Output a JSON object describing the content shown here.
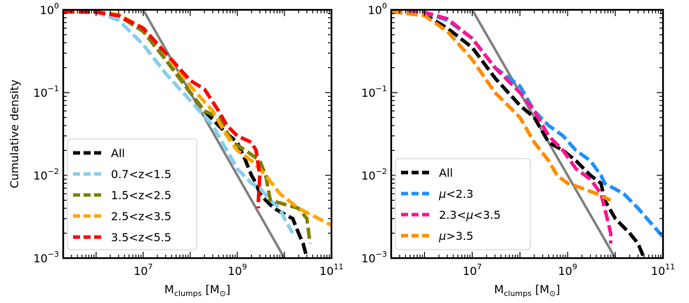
{
  "chart_data": [
    {
      "type": "line",
      "xscale": "log",
      "yscale": "log",
      "xlim": [
        200000,
        100000000000
      ],
      "ylim": [
        0.001,
        1
      ],
      "ylabel": "Cumulative density",
      "xlabel": {
        "main": "M",
        "sub": "clumps",
        "unit_open": " [M",
        "unit_sub": "⊙",
        "unit_close": "]"
      },
      "x_ticks": [
        {
          "base": "10",
          "exp": "7",
          "value": 10000000
        },
        {
          "base": "10",
          "exp": "9",
          "value": 1000000000
        },
        {
          "base": "10",
          "exp": "11",
          "value": 100000000000
        }
      ],
      "y_ticks": [
        {
          "base": "10",
          "exp": "0",
          "value": 1
        },
        {
          "base": "10",
          "exp": "−1",
          "value": 0.1
        },
        {
          "base": "10",
          "exp": "−2",
          "value": 0.01
        },
        {
          "base": "10",
          "exp": "−3",
          "value": 0.001
        }
      ],
      "legend_position": "lower-left",
      "reference_line": {
        "name": "power-law",
        "color": "#808080",
        "points": [
          [
            10000000,
            1
          ],
          [
            10000000000,
            0.001
          ]
        ]
      },
      "series": [
        {
          "name": "All",
          "color": "#000000",
          "points": [
            [
              200000,
              0.95
            ],
            [
              1000000,
              0.94
            ],
            [
              3000000,
              0.85
            ],
            [
              10000000,
              0.55
            ],
            [
              30000000,
              0.25
            ],
            [
              100000000,
              0.1
            ],
            [
              200000000,
              0.06
            ],
            [
              400000000,
              0.04
            ],
            [
              600000000,
              0.032
            ],
            [
              1000000000,
              0.025
            ],
            [
              1500000000,
              0.015
            ],
            [
              2000000000,
              0.01
            ],
            [
              2500000000,
              0.008
            ],
            [
              3000000000,
              0.006
            ],
            [
              4000000000,
              0.005
            ],
            [
              6000000000,
              0.004
            ],
            [
              15000000000,
              0.003
            ],
            [
              20000000000,
              0.002
            ],
            [
              25000000000,
              0.0015
            ],
            [
              30000000000,
              0.001
            ]
          ]
        },
        {
          "name": "0.7<z<1.5",
          "color": "#87CEEB",
          "points": [
            [
              200000,
              0.95
            ],
            [
              1000000,
              0.93
            ],
            [
              3000000,
              0.75
            ],
            [
              10000000,
              0.38
            ],
            [
              30000000,
              0.17
            ],
            [
              100000000,
              0.08
            ],
            [
              300000000,
              0.04
            ],
            [
              600000000,
              0.02
            ],
            [
              1000000000,
              0.012
            ],
            [
              2000000000,
              0.008
            ],
            [
              3000000000,
              0.007
            ],
            [
              5000000000,
              0.005
            ],
            [
              8000000000,
              0.004
            ],
            [
              10000000000,
              0.003
            ],
            [
              15000000000,
              0.002
            ]
          ]
        },
        {
          "name": "1.5<z<2.5",
          "color": "#808000",
          "points": [
            [
              200000,
              0.95
            ],
            [
              1000000,
              0.94
            ],
            [
              3000000,
              0.85
            ],
            [
              10000000,
              0.55
            ],
            [
              30000000,
              0.25
            ],
            [
              100000000,
              0.1
            ],
            [
              200000000,
              0.06
            ],
            [
              400000000,
              0.05
            ],
            [
              800000000,
              0.025
            ],
            [
              1500000000,
              0.02
            ],
            [
              3000000000,
              0.015
            ],
            [
              4000000000,
              0.01
            ],
            [
              5000000000,
              0.005
            ],
            [
              20000000000,
              0.004
            ],
            [
              30000000000,
              0.003
            ],
            [
              35000000000,
              0.0015
            ]
          ]
        },
        {
          "name": "2.5<z<3.5",
          "color": "#FFA500",
          "points": [
            [
              200000,
              0.95
            ],
            [
              1000000,
              0.94
            ],
            [
              3000000,
              0.88
            ],
            [
              10000000,
              0.6
            ],
            [
              30000000,
              0.3
            ],
            [
              100000000,
              0.12
            ],
            [
              300000000,
              0.06
            ],
            [
              600000000,
              0.03
            ],
            [
              1000000000,
              0.02
            ],
            [
              2000000000,
              0.015
            ],
            [
              4000000000,
              0.01
            ],
            [
              8000000000,
              0.006
            ],
            [
              20000000000,
              0.004
            ],
            [
              100000000000,
              0.0025
            ]
          ]
        },
        {
          "name": "3.5<z<5.5",
          "color": "#FF0000",
          "points": [
            [
              200000,
              0.95
            ],
            [
              1000000,
              0.94
            ],
            [
              3000000,
              0.85
            ],
            [
              10000000,
              0.6
            ],
            [
              30000000,
              0.3
            ],
            [
              100000000,
              0.14
            ],
            [
              200000000,
              0.11
            ],
            [
              400000000,
              0.06
            ],
            [
              600000000,
              0.04
            ],
            [
              1000000000,
              0.03
            ],
            [
              2000000000,
              0.025
            ],
            [
              2500000000,
              0.02
            ],
            [
              3000000000,
              0.01
            ],
            [
              2800000000,
              0.005
            ],
            [
              2800000000,
              0.004
            ]
          ]
        }
      ]
    },
    {
      "type": "line",
      "xscale": "log",
      "yscale": "log",
      "xlim": [
        200000,
        100000000000
      ],
      "ylim": [
        0.001,
        1
      ],
      "ylabel": "",
      "xlabel": {
        "main": "M",
        "sub": "clumps",
        "unit_open": " [M",
        "unit_sub": "⊙",
        "unit_close": "]"
      },
      "x_ticks": [
        {
          "base": "10",
          "exp": "7",
          "value": 10000000
        },
        {
          "base": "10",
          "exp": "9",
          "value": 1000000000
        },
        {
          "base": "10",
          "exp": "11",
          "value": 100000000000
        }
      ],
      "y_ticks": [
        {
          "base": "10",
          "exp": "0",
          "value": 1
        },
        {
          "base": "10",
          "exp": "−1",
          "value": 0.1
        },
        {
          "base": "10",
          "exp": "−2",
          "value": 0.01
        },
        {
          "base": "10",
          "exp": "−3",
          "value": 0.001
        }
      ],
      "legend_position": "lower-left",
      "reference_line": {
        "name": "power-law",
        "color": "#808080",
        "points": [
          [
            10000000,
            1
          ],
          [
            10000000000,
            0.001
          ]
        ]
      },
      "series": [
        {
          "name": "All",
          "prefix": "",
          "mu": "",
          "suffix": "All",
          "color": "#000000",
          "points": [
            [
              200000,
              0.95
            ],
            [
              1000000,
              0.88
            ],
            [
              3000000,
              0.6
            ],
            [
              10000000,
              0.35
            ],
            [
              30000000,
              0.15
            ],
            [
              100000000,
              0.07
            ],
            [
              200000000,
              0.05
            ],
            [
              400000000,
              0.025
            ],
            [
              800000000,
              0.02
            ],
            [
              1500000000,
              0.015
            ],
            [
              3000000000,
              0.01
            ],
            [
              5000000000,
              0.008
            ],
            [
              6000000000,
              0.005
            ],
            [
              10000000000,
              0.003
            ],
            [
              20000000000,
              0.002
            ],
            [
              30000000000,
              0.0015
            ],
            [
              40000000000,
              0.001
            ]
          ]
        },
        {
          "name": "μ<2.3",
          "prefix": "",
          "mu": "μ",
          "suffix": "<2.3",
          "color": "#1E90FF",
          "points": [
            [
              200000,
              0.95
            ],
            [
              1000000,
              0.92
            ],
            [
              3000000,
              0.75
            ],
            [
              10000000,
              0.45
            ],
            [
              30000000,
              0.2
            ],
            [
              100000000,
              0.12
            ],
            [
              200000000,
              0.06
            ],
            [
              400000000,
              0.04
            ],
            [
              800000000,
              0.03
            ],
            [
              1500000000,
              0.02
            ],
            [
              3000000000,
              0.015
            ],
            [
              5000000000,
              0.01
            ],
            [
              6000000000,
              0.008
            ],
            [
              15000000000,
              0.006
            ],
            [
              30000000000,
              0.004
            ],
            [
              100000000000,
              0.0018
            ]
          ]
        },
        {
          "name": "2.3<μ<3.5",
          "prefix": "2.3<",
          "mu": "μ",
          "suffix": "<3.5",
          "color": "#FF1493",
          "points": [
            [
              200000,
              0.95
            ],
            [
              1000000,
              0.93
            ],
            [
              3000000,
              0.78
            ],
            [
              10000000,
              0.45
            ],
            [
              30000000,
              0.2
            ],
            [
              100000000,
              0.1
            ],
            [
              200000000,
              0.06
            ],
            [
              400000000,
              0.03
            ],
            [
              800000000,
              0.02
            ],
            [
              1500000000,
              0.012
            ],
            [
              3000000000,
              0.009
            ],
            [
              5000000000,
              0.006
            ],
            [
              6000000000,
              0.004
            ],
            [
              8000000000,
              0.002
            ],
            [
              8000000000,
              0.0015
            ]
          ]
        },
        {
          "name": "μ>3.5",
          "prefix": "",
          "mu": "μ",
          "suffix": ">3.5",
          "color": "#FF8C00",
          "points": [
            [
              200000,
              0.95
            ],
            [
              1000000,
              0.85
            ],
            [
              3000000,
              0.55
            ],
            [
              10000000,
              0.25
            ],
            [
              30000000,
              0.1
            ],
            [
              100000000,
              0.05
            ],
            [
              200000000,
              0.025
            ],
            [
              400000000,
              0.015
            ],
            [
              600000000,
              0.01
            ],
            [
              1000000000,
              0.008
            ],
            [
              2000000000,
              0.007
            ],
            [
              4000000000,
              0.006
            ],
            [
              8000000000,
              0.005
            ]
          ]
        }
      ]
    }
  ]
}
